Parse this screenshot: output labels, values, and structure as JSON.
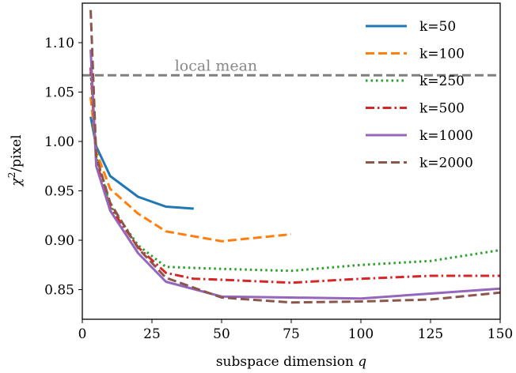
{
  "chart_data": {
    "type": "line",
    "xlabel_text": "subspace dimension",
    "xlabel_var": "q",
    "ylabel_base": "χ",
    "ylabel_sup": "2",
    "ylabel_rest": "/pixel",
    "xlim": [
      0,
      150
    ],
    "ylim": [
      0.82,
      1.14
    ],
    "xticks": [
      0,
      25,
      50,
      75,
      100,
      125,
      150
    ],
    "yticks": [
      0.85,
      0.9,
      0.95,
      1.0,
      1.05,
      1.1
    ],
    "xtick_labels": [
      "0",
      "25",
      "50",
      "75",
      "100",
      "125",
      "150"
    ],
    "ytick_labels": [
      "0.85",
      "0.90",
      "0.95",
      "1.00",
      "1.05",
      "1.10"
    ],
    "grid": false,
    "legend_position": "top-right",
    "reference_line": {
      "label": "local mean",
      "y": 1.067,
      "color": "#7f7f7f",
      "dash": "dashed"
    },
    "series": [
      {
        "name": "k=50",
        "color": "#1f77b4",
        "dash": "solid",
        "x": [
          3,
          5,
          10,
          20,
          30,
          40
        ],
        "y": [
          1.025,
          0.995,
          0.965,
          0.944,
          0.934,
          0.932
        ]
      },
      {
        "name": "k=100",
        "color": "#ff7f0e",
        "dash": "dashed",
        "x": [
          3,
          5,
          10,
          20,
          30,
          50,
          75
        ],
        "y": [
          1.045,
          0.99,
          0.952,
          0.927,
          0.909,
          0.899,
          0.906
        ]
      },
      {
        "name": "k=250",
        "color": "#2ca02c",
        "dash": "dotted",
        "x": [
          3,
          5,
          10,
          20,
          30,
          50,
          75,
          100,
          125,
          150
        ],
        "y": [
          1.07,
          0.985,
          0.935,
          0.895,
          0.873,
          0.871,
          0.869,
          0.875,
          0.879,
          0.89
        ]
      },
      {
        "name": "k=500",
        "color": "#d62728",
        "dash": "dashdot",
        "x": [
          3,
          5,
          10,
          20,
          30,
          40,
          50,
          75,
          100,
          125,
          150
        ],
        "y": [
          1.075,
          0.98,
          0.933,
          0.893,
          0.867,
          0.861,
          0.86,
          0.857,
          0.861,
          0.864,
          0.864
        ]
      },
      {
        "name": "k=1000",
        "color": "#9467bd",
        "dash": "solid",
        "x": [
          3,
          5,
          10,
          20,
          30,
          50,
          75,
          100,
          150
        ],
        "y": [
          1.093,
          0.975,
          0.93,
          0.887,
          0.858,
          0.843,
          0.842,
          0.841,
          0.851
        ]
      },
      {
        "name": "k=2000",
        "color": "#8c564b",
        "dash": "dashed",
        "x": [
          3,
          5,
          10,
          20,
          30,
          50,
          75,
          100,
          125,
          150
        ],
        "y": [
          1.133,
          0.985,
          0.938,
          0.892,
          0.862,
          0.842,
          0.837,
          0.838,
          0.84,
          0.847
        ]
      }
    ]
  }
}
